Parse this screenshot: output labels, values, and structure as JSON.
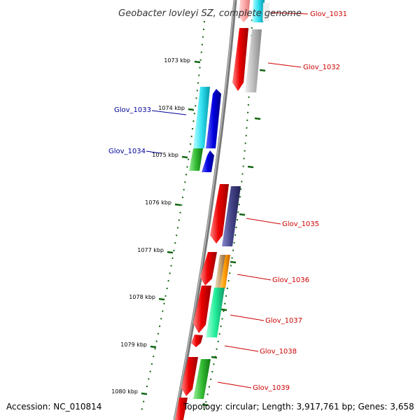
{
  "title": "Geobacter lovleyi SZ, complete genome",
  "footer": {
    "accession": "Accession: NC_010814",
    "summary": "Topology: circular; Length: 3,917,761 bp; Genes: 3,658"
  },
  "ticks": [
    "1073 kbp",
    "1074 kbp",
    "1075 kbp",
    "1076 kbp",
    "1077 kbp",
    "1078 kbp",
    "1079 kbp",
    "1080 kbp"
  ],
  "genes": [
    {
      "label": "Glov_1031",
      "color": "#cc0000"
    },
    {
      "label": "Glov_1032",
      "color": "#cc0000"
    },
    {
      "label": "Glov_1033",
      "color": "#000099"
    },
    {
      "label": "Glov_1034",
      "color": "#000099"
    },
    {
      "label": "Glov_1035",
      "color": "#cc0000"
    },
    {
      "label": "Glov_1036",
      "color": "#cc0000"
    },
    {
      "label": "Glov_1037",
      "color": "#cc0000"
    },
    {
      "label": "Glov_1038",
      "color": "#cc0000"
    },
    {
      "label": "Glov_1039",
      "color": "#cc0000"
    }
  ],
  "feature_colors": {
    "cds": "#ee0000",
    "grey": "#b8b8b8",
    "cyan": "#33e0f0",
    "blue": "#0000dd",
    "green": "#33bb33",
    "slate": "#444488",
    "tan": "#c8a878",
    "orange": "#ff9900",
    "aqua": "#22ee99",
    "tick": "#116611",
    "backbone": "#888888"
  }
}
